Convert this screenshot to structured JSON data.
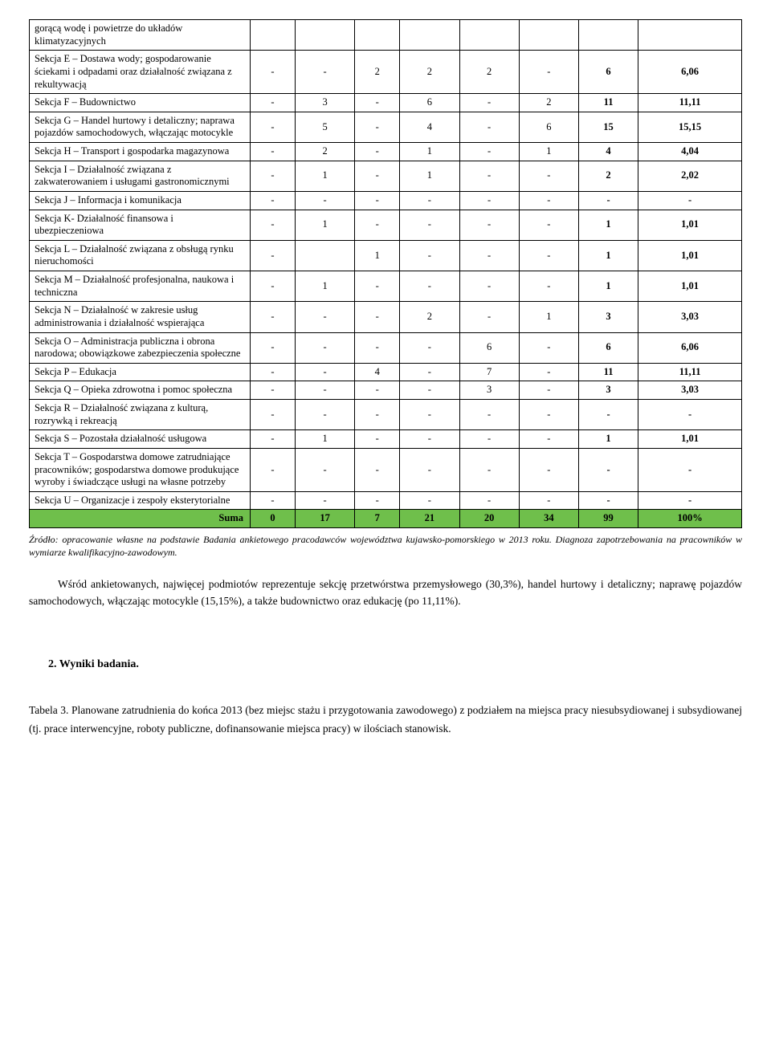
{
  "table": {
    "rows": [
      {
        "label": "gorącą wodę i powietrze do układów klimatyzacyjnych",
        "c": [
          "",
          "",
          "",
          "",
          "",
          "",
          "",
          ""
        ]
      },
      {
        "label": "Sekcja E – Dostawa wody; gospodarowanie ściekami i odpadami oraz działalność związana z rekultywacją",
        "c": [
          "-",
          "-",
          "2",
          "2",
          "2",
          "-",
          "6",
          "6,06"
        ]
      },
      {
        "label": "Sekcja F – Budownictwo",
        "c": [
          "-",
          "3",
          "-",
          "6",
          "-",
          "2",
          "11",
          "11,11"
        ]
      },
      {
        "label": "Sekcja G – Handel hurtowy i detaliczny; naprawa pojazdów samochodowych, włączając motocykle",
        "c": [
          "-",
          "5",
          "-",
          "4",
          "-",
          "6",
          "15",
          "15,15"
        ]
      },
      {
        "label": "Sekcja H – Transport i gospodarka magazynowa",
        "c": [
          "-",
          "2",
          "-",
          "1",
          "-",
          "1",
          "4",
          "4,04"
        ]
      },
      {
        "label": "Sekcja I – Działalność związana z zakwaterowaniem i usługami gastronomicznymi",
        "c": [
          "-",
          "1",
          "-",
          "1",
          "-",
          "-",
          "2",
          "2,02"
        ]
      },
      {
        "label": "Sekcja J – Informacja i komunikacja",
        "c": [
          "-",
          "-",
          "-",
          "-",
          "-",
          "-",
          "-",
          "-"
        ]
      },
      {
        "label": "Sekcja K- Działalność finansowa i ubezpieczeniowa",
        "c": [
          "-",
          "1",
          "-",
          "-",
          "-",
          "-",
          "1",
          "1,01"
        ]
      },
      {
        "label": "Sekcja L – Działalność związana z obsługą rynku nieruchomości",
        "c": [
          "-",
          "",
          "1",
          "-",
          "-",
          "-",
          "1",
          "1,01"
        ]
      },
      {
        "label": "Sekcja M – Działalność profesjonalna, naukowa i techniczna",
        "c": [
          "-",
          "1",
          "-",
          "-",
          "-",
          "-",
          "1",
          "1,01"
        ]
      },
      {
        "label": "Sekcja N – Działalność w zakresie usług administrowania i działalność wspierająca",
        "c": [
          "-",
          "-",
          "-",
          "2",
          "-",
          "1",
          "3",
          "3,03"
        ]
      },
      {
        "label": "Sekcja O – Administracja publiczna i obrona narodowa; obowiązkowe zabezpieczenia społeczne",
        "c": [
          "-",
          "-",
          "-",
          "-",
          "6",
          "-",
          "6",
          "6,06"
        ]
      },
      {
        "label": "Sekcja P – Edukacja",
        "c": [
          "-",
          "-",
          "4",
          "-",
          "7",
          "-",
          "11",
          "11,11"
        ]
      },
      {
        "label": "Sekcja Q – Opieka zdrowotna i pomoc społeczna",
        "c": [
          "-",
          "-",
          "-",
          "-",
          "3",
          "-",
          "3",
          "3,03"
        ]
      },
      {
        "label": "Sekcja R – Działalność związana z kulturą, rozrywką i rekreacją",
        "c": [
          "-",
          "-",
          "-",
          "-",
          "-",
          "-",
          "-",
          "-"
        ]
      },
      {
        "label": "Sekcja S – Pozostała działalność usługowa",
        "c": [
          "-",
          "1",
          "-",
          "-",
          "-",
          "-",
          "1",
          "1,01"
        ]
      },
      {
        "label": "Sekcja T – Gospodarstwa domowe zatrudniające pracowników; gospodarstwa domowe produkujące wyroby i świadczące usługi na własne potrzeby",
        "c": [
          "-",
          "-",
          "-",
          "-",
          "-",
          "-",
          "-",
          "-"
        ]
      },
      {
        "label": "Sekcja U – Organizacje i zespoły eksterytorialne",
        "c": [
          "-",
          "-",
          "-",
          "-",
          "-",
          "-",
          "-",
          "-"
        ]
      }
    ],
    "sum": {
      "label": "Suma",
      "c": [
        "0",
        "17",
        "7",
        "21",
        "20",
        "34",
        "99",
        "100%"
      ]
    }
  },
  "sourceText": "Źródło: opracowanie własne na podstawie Badania ankietowego pracodawców województwa kujawsko-pomorskiego w 2013 roku. Diagnoza zapotrzebowania na pracowników w wymiarze kwalifikacyjno-zawodowym.",
  "paragraph": "Wśród ankietowanych, najwięcej podmiotów reprezentuje sekcję przetwórstwa przemysłowego (30,3%), handel hurtowy i detaliczny; naprawę pojazdów samochodowych, włączając motocykle (15,15%),  a także budownictwo oraz edukację (po 11,11%).",
  "heading": "2.   Wyniki badania.",
  "tabelaCaption": "Tabela 3. Planowane zatrudnienia do końca 2013 (bez miejsc stażu i przygotowania zawodowego) z podziałem na miejsca pracy  niesubsydiowanej i subsydiowanej (tj. prace interwencyjne, roboty publiczne, dofinansowanie miejsca pracy) w ilościach stanowisk.",
  "style": {
    "sum_bg": "#6fbf4b",
    "font_family": "Palatino Linotype"
  }
}
